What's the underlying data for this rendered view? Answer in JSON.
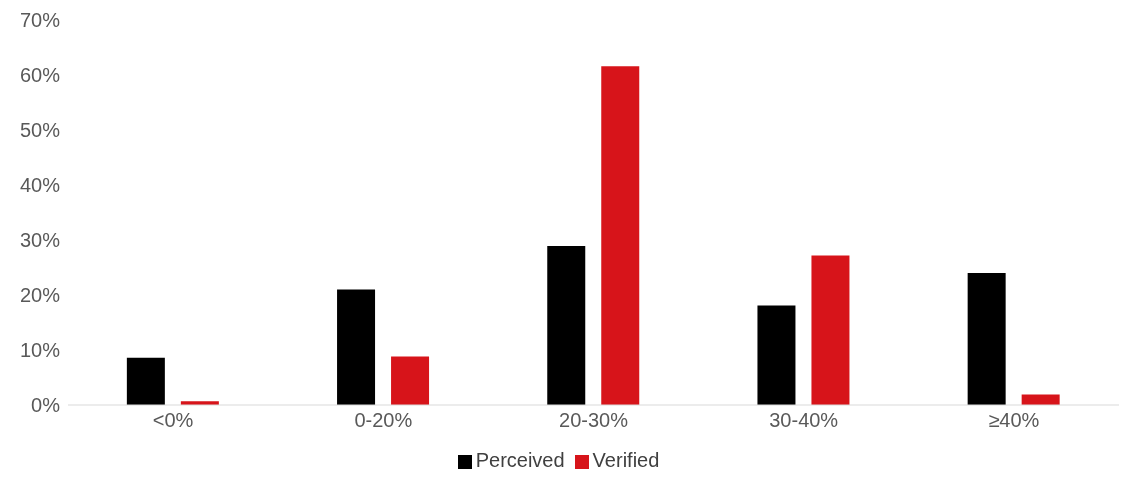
{
  "chart_data": {
    "type": "bar",
    "categories": [
      "<0%",
      "0-20%",
      "20-30%",
      "30-40%",
      "≥40%"
    ],
    "series": [
      {
        "name": "Perceived",
        "color": "#000000",
        "values": [
          8.6,
          21.0,
          28.9,
          18.1,
          24.0
        ]
      },
      {
        "name": "Verified",
        "color": "#d7141a",
        "values": [
          0.7,
          8.8,
          61.6,
          27.2,
          1.9
        ]
      }
    ],
    "ylim": [
      0,
      70
    ],
    "yticks": [
      {
        "value": 0,
        "label": "0%"
      },
      {
        "value": 10,
        "label": "10%"
      },
      {
        "value": 20,
        "label": "20%"
      },
      {
        "value": 30,
        "label": "30%"
      },
      {
        "value": 40,
        "label": "40%"
      },
      {
        "value": 50,
        "label": "50%"
      },
      {
        "value": 60,
        "label": "60%"
      },
      {
        "value": 70,
        "label": "70%"
      }
    ],
    "grid": false,
    "legend": "bottom"
  }
}
